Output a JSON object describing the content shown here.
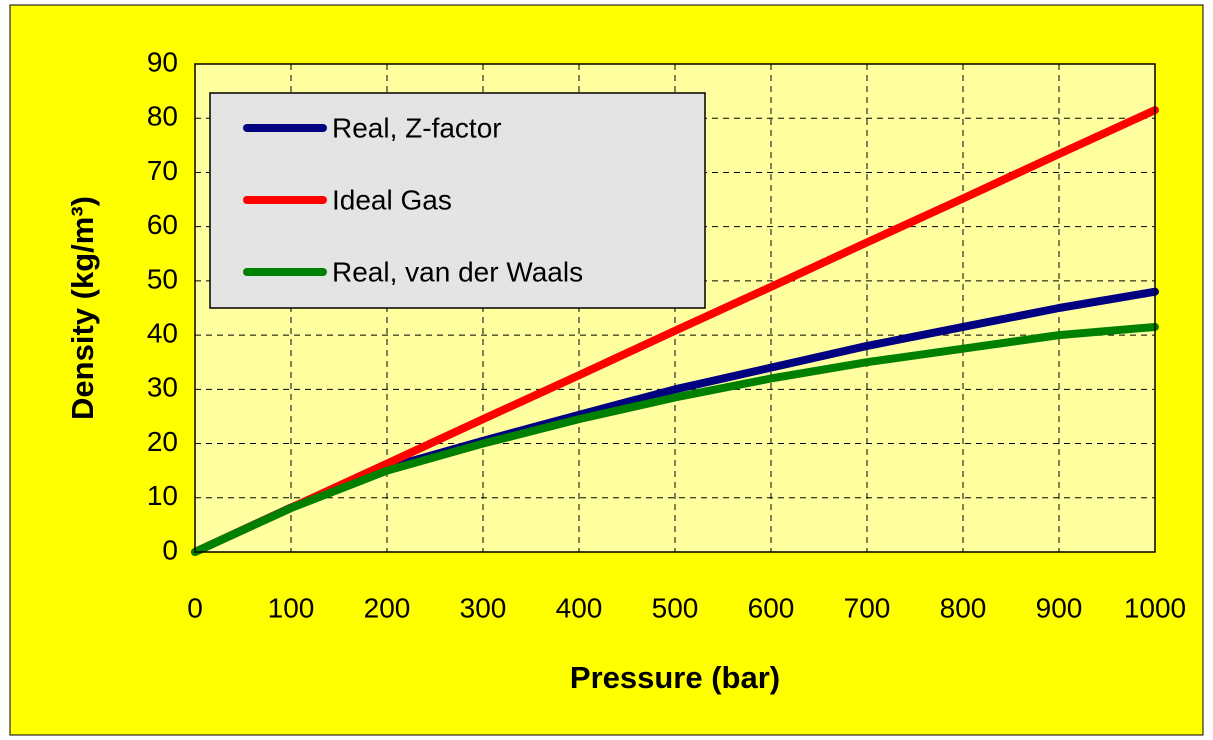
{
  "chart_data": {
    "type": "line",
    "xlabel": "Pressure (bar)",
    "ylabel": "Density (kg/m³)",
    "x": [
      0,
      100,
      200,
      300,
      400,
      500,
      600,
      700,
      800,
      900,
      1000
    ],
    "series": [
      {
        "name": "Real, Z-factor",
        "color": "#000080",
        "values": [
          0,
          8.2,
          15.5,
          20.5,
          25.3,
          30,
          34,
          38,
          41.5,
          45,
          48
        ]
      },
      {
        "name": "Ideal Gas",
        "color": "#ff0000",
        "values": [
          0,
          8.15,
          16.3,
          24.5,
          32.6,
          40.8,
          48.9,
          57.1,
          65.2,
          73.4,
          81.5
        ]
      },
      {
        "name": "Real, van der Waals",
        "color": "#008000",
        "values": [
          0,
          8.1,
          15,
          20,
          24.5,
          28.5,
          32,
          35,
          37.5,
          40,
          41.5
        ]
      }
    ],
    "xlim": [
      0,
      1000
    ],
    "xticks": [
      0,
      100,
      200,
      300,
      400,
      500,
      600,
      700,
      800,
      900,
      1000
    ],
    "ylim": [
      0,
      90
    ],
    "yticks": [
      0,
      10,
      20,
      30,
      40,
      50,
      60,
      70,
      80,
      90
    ],
    "grid": true,
    "legend": "upper left"
  }
}
